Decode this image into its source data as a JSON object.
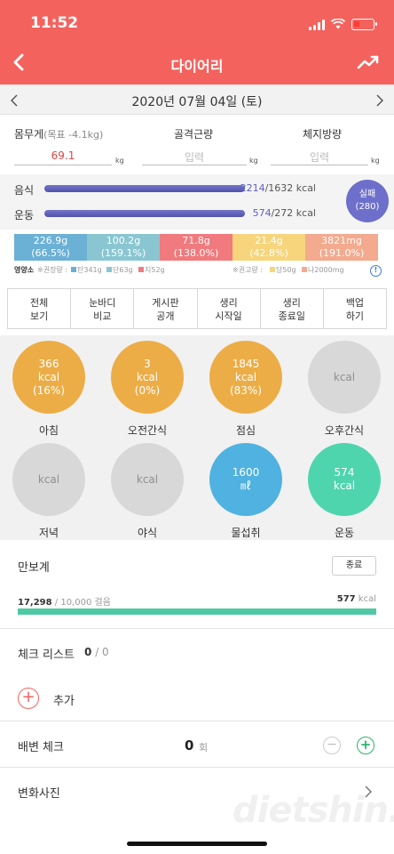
{
  "status_bar": {
    "time": "11:52"
  },
  "header": {
    "title": "다이어리"
  },
  "date_bar": {
    "date": "2020년 07월 04일 (토)"
  },
  "metrics": {
    "weight_label": "몸무게",
    "weight_goal": "(목표 -4.1kg)",
    "weight_value": "69.1",
    "muscle_label": "골격근량",
    "muscle_placeholder": "입력",
    "fat_label": "체지방량",
    "fat_placeholder": "입력",
    "unit": "kg"
  },
  "calories": {
    "food_label": "음식",
    "food_value": "2214",
    "food_target": "/1632 kcal",
    "exercise_label": "운동",
    "exercise_value": "574",
    "exercise_target": "/272 kcal",
    "status_label": "실패",
    "status_value": "(280)"
  },
  "nutrients": [
    {
      "amount": "226.9g",
      "percent": "(66.5%)",
      "color": "#6bb0d5"
    },
    {
      "amount": "100.2g",
      "percent": "(159.1%)",
      "color": "#8ac6d2"
    },
    {
      "amount": "71.8g",
      "percent": "(138.0%)",
      "color": "#f07a7d"
    },
    {
      "amount": "21.4g",
      "percent": "(42.8%)",
      "color": "#f6d57c"
    },
    {
      "amount": "3821mg",
      "percent": "(191.0%)",
      "color": "#f3aa8e"
    }
  ],
  "nutrient_legend": {
    "label": "영양소",
    "recommended_a": "※권장량 :",
    "carb": "탄341g",
    "protein": "단63g",
    "fat": "지52g",
    "recommended_b": "※권고량 :",
    "sugar": "당50g",
    "sodium": "나2000mg",
    "info": "!"
  },
  "menu": [
    "전체\n보기",
    "눈바디\n비교",
    "게시판\n공개",
    "생리\n시작일",
    "생리\n종료일",
    "백업\n하기"
  ],
  "meals": [
    {
      "name": "아침",
      "line1": "366",
      "line2": "kcal",
      "line3": "(16%)",
      "color": "#ecad46"
    },
    {
      "name": "오전간식",
      "line1": "3",
      "line2": "kcal",
      "line3": "(0%)",
      "color": "#ecad46"
    },
    {
      "name": "점심",
      "line1": "1845",
      "line2": "kcal",
      "line3": "(83%)",
      "color": "#ecad46"
    },
    {
      "name": "오후간식",
      "line1": "kcal",
      "line2": "",
      "line3": "",
      "color": "#d8d8d8"
    },
    {
      "name": "저녁",
      "line1": "kcal",
      "line2": "",
      "line3": "",
      "color": "#d8d8d8"
    },
    {
      "name": "야식",
      "line1": "kcal",
      "line2": "",
      "line3": "",
      "color": "#d8d8d8"
    },
    {
      "name": "물섭취",
      "line1": "1600",
      "line2": "㎖",
      "line3": "",
      "color": "#4fb2e0"
    },
    {
      "name": "운동",
      "line1": "574",
      "line2": "kcal",
      "line3": "",
      "color": "#4fd5ae"
    }
  ],
  "pedometer": {
    "title": "만보계",
    "end_label": "종료",
    "steps": "17,298",
    "goal": "/ 10,000 걸음",
    "kcal_value": "577",
    "kcal_unit": "kcal",
    "progress": 1.0
  },
  "checklist": {
    "title": "체크 리스트",
    "done": "0",
    "total": "/ 0",
    "add_label": "추가"
  },
  "bowel": {
    "title": "배변 체크",
    "count": "0",
    "unit": "회"
  },
  "photo": {
    "title": "변화사진"
  },
  "watermark": "dietshin.com"
}
